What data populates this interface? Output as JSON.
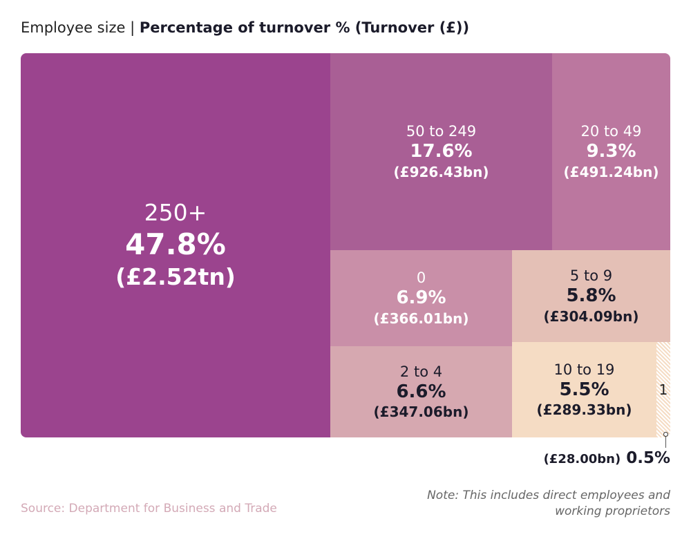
{
  "title": {
    "prefix": "Employee size | ",
    "bold": "Percentage of turnover % (Turnover (£))"
  },
  "chart_data": {
    "type": "treemap",
    "title": "Employee size | Percentage of turnover % (Turnover (£))",
    "items": [
      {
        "label": "250+",
        "percent": "47.8%",
        "value": "(£2.52tn)",
        "percent_num": 47.8,
        "color": "#9b448e",
        "text_color": "#ffffff"
      },
      {
        "label": "50 to 249",
        "percent": "17.6%",
        "value": "(£926.43bn)",
        "percent_num": 17.6,
        "color": "#a95f95",
        "text_color": "#ffffff"
      },
      {
        "label": "20 to 49",
        "percent": "9.3%",
        "value": "(£491.24bn)",
        "percent_num": 9.3,
        "color": "#bb779f",
        "text_color": "#ffffff"
      },
      {
        "label": "0",
        "percent": "6.9%",
        "value": "(£366.01bn)",
        "percent_num": 6.9,
        "color": "#c98fa8",
        "text_color": "#ffffff"
      },
      {
        "label": "5 to 9",
        "percent": "5.8%",
        "value": "(£304.09bn)",
        "percent_num": 5.8,
        "color": "#e4c0b6",
        "text_color": "#1b1b2a"
      },
      {
        "label": "2 to 4",
        "percent": "6.6%",
        "value": "(£347.06bn)",
        "percent_num": 6.6,
        "color": "#d6a8b0",
        "text_color": "#1b1b2a"
      },
      {
        "label": "10 to 19",
        "percent": "5.5%",
        "value": "(£289.33bn)",
        "percent_num": 5.5,
        "color": "#f5dcc4",
        "text_color": "#1b1b2a"
      },
      {
        "label": "1",
        "percent": "0.5%",
        "value": "(£28.00bn)",
        "percent_num": 0.5,
        "color": "#f5dcc4",
        "text_color": "#1b1b2a"
      }
    ]
  },
  "source": "Source: Department for Business and Trade",
  "note": "Note: This includes direct employees and working proprietors"
}
